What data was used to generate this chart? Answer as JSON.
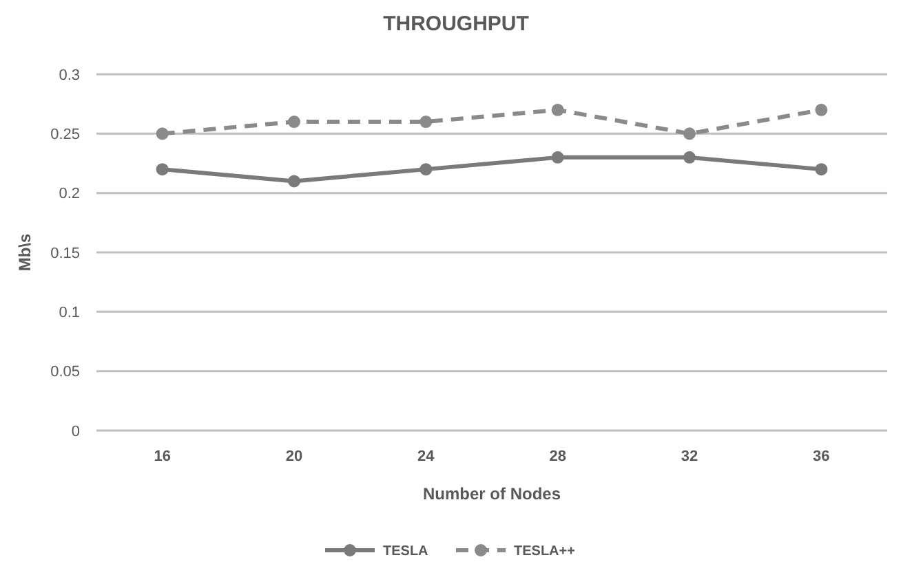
{
  "chart_data": {
    "type": "line",
    "title": "THROUGHPUT",
    "xlabel": "Number of Nodes",
    "ylabel": "Mb\\s",
    "categories": [
      "16",
      "20",
      "24",
      "28",
      "32",
      "36"
    ],
    "series": [
      {
        "name": "TESLA",
        "color": "#7a7a7a",
        "line_style": "solid",
        "values": [
          0.22,
          0.21,
          0.22,
          0.23,
          0.23,
          0.22
        ]
      },
      {
        "name": "TESLA++",
        "color": "#8a8a8a",
        "line_style": "dashed",
        "values": [
          0.25,
          0.26,
          0.26,
          0.27,
          0.25,
          0.27
        ]
      }
    ],
    "ylim": [
      0,
      0.3
    ],
    "yticks": [
      0,
      0.05,
      0.1,
      0.15,
      0.2,
      0.25,
      0.3
    ],
    "grid": "y",
    "legend": "bottom",
    "marker": "circle"
  }
}
